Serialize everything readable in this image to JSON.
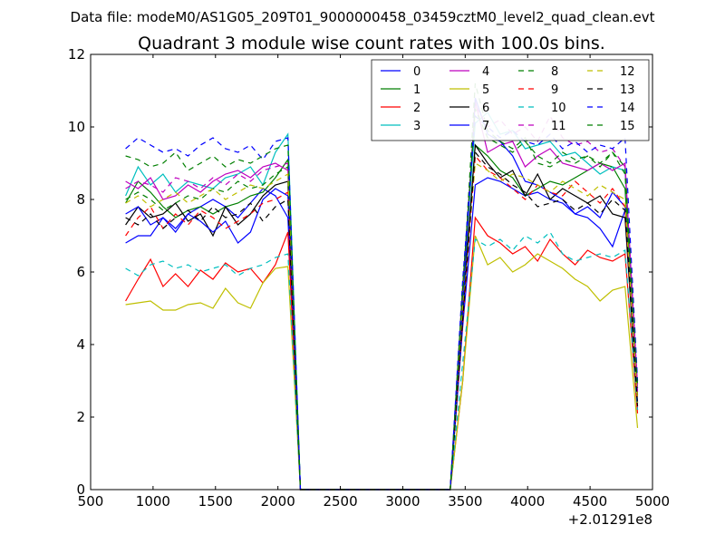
{
  "chart_data": {
    "type": "line",
    "suptitle": "Data file: modeM0/AS1G05_209T01_9000000458_03459cztM0_level2_quad_clean.evt",
    "title": "Quadrant 3 module wise count rates with 100.0s bins.",
    "xlabel": "",
    "ylabel": "",
    "x_offset_label": "+2.01291e8",
    "xlim": [
      500,
      5000
    ],
    "ylim": [
      0,
      12
    ],
    "xticks": [
      500,
      1000,
      1500,
      2000,
      2500,
      3000,
      3500,
      4000,
      4500,
      5000
    ],
    "yticks": [
      0,
      2,
      4,
      6,
      8,
      10,
      12
    ],
    "legend_position": "top-right",
    "legend_columns": 4,
    "x": [
      780,
      880,
      980,
      1080,
      1180,
      1280,
      1380,
      1480,
      1580,
      1680,
      1780,
      1880,
      1980,
      2080,
      2180,
      2280,
      2380,
      2480,
      2580,
      2680,
      2780,
      2880,
      2980,
      3080,
      3180,
      3280,
      3380,
      3480,
      3580,
      3680,
      3780,
      3880,
      3980,
      4080,
      4180,
      4280,
      4380,
      4480,
      4580,
      4680,
      4780,
      4880
    ],
    "series": [
      {
        "name": "0",
        "color": "#0000ff",
        "dash": "solid",
        "values": [
          6.8,
          7.0,
          7.0,
          7.5,
          7.2,
          7.6,
          7.8,
          8.0,
          7.8,
          7.5,
          7.9,
          8.3,
          8.1,
          7.5,
          0,
          0,
          0,
          0,
          0,
          0,
          0,
          0,
          0,
          0,
          0,
          0,
          0,
          4.5,
          8.4,
          8.6,
          8.5,
          8.3,
          8.1,
          8.2,
          8.0,
          7.9,
          7.6,
          7.5,
          7.2,
          6.7,
          7.7,
          2.2
        ]
      },
      {
        "name": "1",
        "color": "#007f00",
        "dash": "solid",
        "values": [
          7.9,
          8.5,
          8.2,
          7.8,
          7.5,
          7.7,
          7.8,
          7.6,
          7.8,
          7.9,
          8.1,
          8.2,
          8.6,
          9.1,
          0,
          0,
          0,
          0,
          0,
          0,
          0,
          0,
          0,
          0,
          0,
          0,
          0,
          5.0,
          9.5,
          9.2,
          8.8,
          8.6,
          8.1,
          8.3,
          8.5,
          8.4,
          8.6,
          8.8,
          9.0,
          8.9,
          8.3,
          2.6
        ]
      },
      {
        "name": "2",
        "color": "#ff0000",
        "dash": "solid",
        "values": [
          5.2,
          5.8,
          6.35,
          5.6,
          5.95,
          5.6,
          6.05,
          5.8,
          6.25,
          6.0,
          6.1,
          5.7,
          6.2,
          7.1,
          0,
          0,
          0,
          0,
          0,
          0,
          0,
          0,
          0,
          0,
          0,
          0,
          0,
          3.0,
          7.5,
          7.0,
          6.8,
          6.5,
          6.7,
          6.3,
          6.9,
          6.5,
          6.2,
          6.6,
          6.4,
          6.3,
          6.5,
          2.1
        ]
      },
      {
        "name": "3",
        "color": "#00bfbf",
        "dash": "solid",
        "values": [
          8.1,
          8.9,
          8.4,
          8.7,
          8.2,
          8.5,
          8.4,
          8.3,
          8.6,
          8.7,
          8.9,
          8.4,
          9.3,
          9.8,
          0,
          0,
          0,
          0,
          0,
          0,
          0,
          0,
          0,
          0,
          0,
          0,
          0,
          5.5,
          10.1,
          10.4,
          9.8,
          9.9,
          9.4,
          9.5,
          9.6,
          9.2,
          9.3,
          9.0,
          8.7,
          8.9,
          8.8,
          2.8
        ]
      },
      {
        "name": "4",
        "color": "#bf00bf",
        "dash": "solid",
        "values": [
          8.5,
          8.3,
          8.6,
          8.0,
          8.1,
          8.4,
          8.2,
          8.5,
          8.7,
          8.8,
          8.6,
          8.9,
          9.0,
          8.8,
          0,
          0,
          0,
          0,
          0,
          0,
          0,
          0,
          0,
          0,
          0,
          0,
          0,
          5.2,
          10.7,
          9.3,
          9.5,
          9.6,
          8.9,
          9.2,
          9.4,
          9.0,
          8.9,
          8.8,
          9.0,
          8.8,
          9.0,
          2.7
        ]
      },
      {
        "name": "5",
        "color": "#bfbf00",
        "dash": "solid",
        "values": [
          5.1,
          5.15,
          5.2,
          4.95,
          4.95,
          5.1,
          5.15,
          5.0,
          5.55,
          5.15,
          5.0,
          5.7,
          6.1,
          6.15,
          0,
          0,
          0,
          0,
          0,
          0,
          0,
          0,
          0,
          0,
          0,
          0,
          0,
          3.0,
          7.0,
          6.2,
          6.4,
          6.0,
          6.2,
          6.5,
          6.3,
          6.1,
          5.8,
          5.6,
          5.2,
          5.5,
          5.6,
          1.7
        ]
      },
      {
        "name": "6",
        "color": "#000000",
        "dash": "solid",
        "values": [
          7.3,
          7.8,
          7.5,
          7.6,
          7.9,
          7.4,
          7.6,
          7.0,
          7.8,
          7.3,
          7.6,
          8.1,
          8.4,
          8.5,
          0,
          0,
          0,
          0,
          0,
          0,
          0,
          0,
          0,
          0,
          0,
          0,
          0,
          4.8,
          9.5,
          9.0,
          8.6,
          8.8,
          8.1,
          8.7,
          8.0,
          8.3,
          8.1,
          7.9,
          8.1,
          7.6,
          7.5,
          2.3
        ]
      },
      {
        "name": "7",
        "color": "#0000ff",
        "dash": "solid",
        "values": [
          7.6,
          7.8,
          7.3,
          7.5,
          7.1,
          7.6,
          7.4,
          7.1,
          7.4,
          6.8,
          7.1,
          8.0,
          8.3,
          8.1,
          0,
          0,
          0,
          0,
          0,
          0,
          0,
          0,
          0,
          0,
          0,
          0,
          0,
          5.0,
          10.8,
          9.8,
          9.6,
          9.2,
          8.5,
          8.4,
          8.2,
          8.0,
          7.6,
          7.8,
          7.5,
          8.2,
          7.8,
          2.4
        ]
      },
      {
        "name": "8",
        "color": "#007f00",
        "dash": "dashed",
        "values": [
          8.0,
          8.2,
          8.0,
          7.7,
          7.9,
          8.1,
          8.0,
          8.3,
          8.2,
          8.5,
          8.3,
          8.4,
          8.7,
          8.9,
          0,
          0,
          0,
          0,
          0,
          0,
          0,
          0,
          0,
          0,
          0,
          0,
          0,
          5.4,
          11.2,
          9.9,
          9.6,
          9.4,
          9.7,
          9.0,
          8.9,
          9.1,
          9.0,
          9.2,
          8.9,
          9.3,
          8.7,
          2.9
        ]
      },
      {
        "name": "9",
        "color": "#ff0000",
        "dash": "dashed",
        "values": [
          7.0,
          7.5,
          7.8,
          7.2,
          7.6,
          7.3,
          7.7,
          7.5,
          7.2,
          7.4,
          7.6,
          7.9,
          8.0,
          8.2,
          0,
          0,
          0,
          0,
          0,
          0,
          0,
          0,
          0,
          0,
          0,
          0,
          0,
          4.6,
          9.2,
          8.8,
          8.6,
          8.3,
          8.0,
          8.4,
          8.2,
          8.1,
          8.5,
          8.2,
          7.9,
          8.3,
          7.8,
          2.5
        ]
      },
      {
        "name": "10",
        "color": "#00bfbf",
        "dash": "dashed",
        "values": [
          6.1,
          5.9,
          6.2,
          6.3,
          6.1,
          6.2,
          6.0,
          6.1,
          6.2,
          5.9,
          6.1,
          6.2,
          6.4,
          6.5,
          0,
          0,
          0,
          0,
          0,
          0,
          0,
          0,
          0,
          0,
          0,
          0,
          0,
          3.5,
          6.9,
          6.7,
          6.9,
          6.6,
          7.0,
          6.8,
          7.1,
          6.5,
          6.3,
          6.4,
          6.5,
          6.4,
          6.6,
          2.2
        ]
      },
      {
        "name": "11",
        "color": "#bf00bf",
        "dash": "dashed",
        "values": [
          8.3,
          8.5,
          8.4,
          8.2,
          8.6,
          8.5,
          8.3,
          8.6,
          8.4,
          8.7,
          8.5,
          8.8,
          8.9,
          9.0,
          0,
          0,
          0,
          0,
          0,
          0,
          0,
          0,
          0,
          0,
          0,
          0,
          0,
          5.6,
          10.6,
          10.0,
          10.2,
          9.8,
          10.0,
          9.6,
          10.3,
          9.7,
          9.5,
          9.6,
          9.3,
          9.4,
          8.9,
          2.9
        ]
      },
      {
        "name": "12",
        "color": "#bfbf00",
        "dash": "dashed",
        "values": [
          7.9,
          8.1,
          7.8,
          8.0,
          8.2,
          7.9,
          8.1,
          8.3,
          8.0,
          8.2,
          8.4,
          8.3,
          8.5,
          8.7,
          0,
          0,
          0,
          0,
          0,
          0,
          0,
          0,
          0,
          0,
          0,
          0,
          0,
          5.0,
          9.0,
          8.8,
          8.5,
          8.7,
          8.6,
          8.4,
          8.2,
          8.5,
          8.3,
          8.1,
          8.4,
          8.2,
          8.0,
          2.4
        ]
      },
      {
        "name": "13",
        "color": "#000000",
        "dash": "dashed",
        "values": [
          7.5,
          7.3,
          7.6,
          7.2,
          7.5,
          7.7,
          7.4,
          7.8,
          7.5,
          7.6,
          7.9,
          7.4,
          7.8,
          8.0,
          0,
          0,
          0,
          0,
          0,
          0,
          0,
          0,
          0,
          0,
          0,
          0,
          0,
          4.7,
          9.3,
          8.9,
          8.7,
          8.4,
          8.2,
          7.8,
          7.9,
          8.0,
          7.7,
          7.9,
          7.6,
          8.0,
          7.7,
          2.3
        ]
      },
      {
        "name": "14",
        "color": "#0000ff",
        "dash": "dashed",
        "values": [
          9.4,
          9.7,
          9.5,
          9.3,
          9.4,
          9.2,
          9.5,
          9.7,
          9.4,
          9.3,
          9.5,
          9.1,
          9.6,
          9.7,
          0,
          0,
          0,
          0,
          0,
          0,
          0,
          0,
          0,
          0,
          0,
          0,
          0,
          5.8,
          10.3,
          10.0,
          9.7,
          9.9,
          9.6,
          9.5,
          9.8,
          9.4,
          9.6,
          9.3,
          9.5,
          9.4,
          9.7,
          3.0
        ]
      },
      {
        "name": "15",
        "color": "#007f00",
        "dash": "dashed",
        "values": [
          9.2,
          9.1,
          8.9,
          9.0,
          9.3,
          8.8,
          9.0,
          9.2,
          8.9,
          9.1,
          9.0,
          9.2,
          9.4,
          9.5,
          0,
          0,
          0,
          0,
          0,
          0,
          0,
          0,
          0,
          0,
          0,
          0,
          0,
          5.6,
          10.5,
          9.7,
          9.5,
          9.3,
          9.6,
          9.2,
          9.0,
          9.3,
          9.1,
          9.2,
          9.0,
          9.3,
          8.9,
          2.8
        ]
      }
    ]
  }
}
